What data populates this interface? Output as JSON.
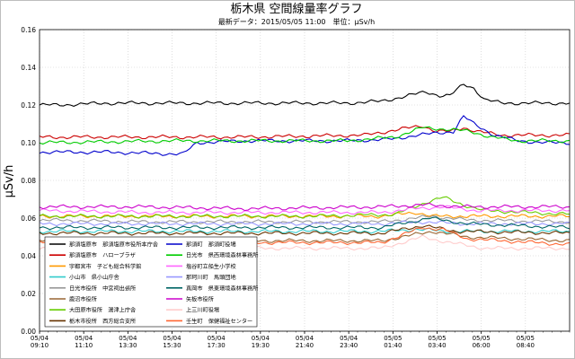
{
  "chart_data": {
    "type": "line",
    "title": "栃木県 空間線量率グラフ",
    "subtitle": "最新データ：2015/05/05 11:00　単位：μSv/h",
    "ylabel": "μSv/h",
    "xlabel": "",
    "ylim": [
      0,
      0.16
    ],
    "yticks": [
      "0.00",
      "0.02",
      "0.04",
      "0.06",
      "0.08",
      "0.10",
      "0.12",
      "0.14",
      "0.16"
    ],
    "x_tick_labels": [
      [
        "05/04",
        "09:10"
      ],
      [
        "05/04",
        "11:10"
      ],
      [
        "05/04",
        "13:30"
      ],
      [
        "05/04",
        "15:30"
      ],
      [
        "05/04",
        "17:30"
      ],
      [
        "05/04",
        "19:30"
      ],
      [
        "05/04",
        "21:40"
      ],
      [
        "05/04",
        "23:40"
      ],
      [
        "05/05",
        "01:40"
      ],
      [
        "05/05",
        "03:40"
      ],
      [
        "05/05",
        "06:00"
      ],
      [
        "05/05",
        "08:40"
      ]
    ],
    "grid": true,
    "legend_position": "lower-left",
    "x_steps": 155,
    "series": [
      {
        "name": "那須塩原市　那須塩原市役所本庁舎",
        "color": "#000000",
        "values": [
          [
            0,
            0.12
          ],
          [
            5,
            0.12
          ],
          [
            20,
            0.121
          ],
          [
            60,
            0.121
          ],
          [
            90,
            0.121
          ],
          [
            100,
            0.122
          ],
          [
            108,
            0.125
          ],
          [
            113,
            0.127
          ],
          [
            117,
            0.125
          ],
          [
            120,
            0.125
          ],
          [
            124,
            0.131
          ],
          [
            127,
            0.129
          ],
          [
            130,
            0.123
          ],
          [
            135,
            0.121
          ],
          [
            155,
            0.121
          ]
        ]
      },
      {
        "name": "那須塩原市　ハローブラザ",
        "color": "#cc0000",
        "values": [
          [
            0,
            0.103
          ],
          [
            60,
            0.103
          ],
          [
            95,
            0.104
          ],
          [
            105,
            0.107
          ],
          [
            112,
            0.109
          ],
          [
            116,
            0.106
          ],
          [
            120,
            0.106
          ],
          [
            124,
            0.108
          ],
          [
            128,
            0.106
          ],
          [
            135,
            0.104
          ],
          [
            155,
            0.104
          ]
        ]
      },
      {
        "name": "宇都宮市　子ども総合科学館",
        "color": "#ff9900",
        "values": [
          [
            0,
            0.061
          ],
          [
            30,
            0.061
          ],
          [
            60,
            0.061
          ],
          [
            100,
            0.061
          ],
          [
            110,
            0.063
          ],
          [
            115,
            0.061
          ],
          [
            155,
            0.061
          ]
        ]
      },
      {
        "name": "小山市　県小山庁舎",
        "color": "#33cccc",
        "values": [
          [
            0,
            0.053
          ],
          [
            50,
            0.053
          ],
          [
            100,
            0.053
          ],
          [
            110,
            0.054
          ],
          [
            120,
            0.053
          ],
          [
            155,
            0.053
          ]
        ]
      },
      {
        "name": "日光市役所　中宮祠出張所",
        "color": "#999999",
        "values": [
          [
            0,
            0.059
          ],
          [
            30,
            0.058
          ],
          [
            60,
            0.058
          ],
          [
            100,
            0.058
          ],
          [
            115,
            0.061
          ],
          [
            125,
            0.059
          ],
          [
            155,
            0.058
          ]
        ]
      },
      {
        "name": "鹿沼市役所",
        "color": "#996633",
        "values": [
          [
            0,
            0.048
          ],
          [
            50,
            0.048
          ],
          [
            100,
            0.048
          ],
          [
            115,
            0.053
          ],
          [
            125,
            0.05
          ],
          [
            155,
            0.048
          ]
        ]
      },
      {
        "name": "大田原市役所　湯津上庁舎",
        "color": "#66cc00",
        "values": [
          [
            0,
            0.061
          ],
          [
            40,
            0.061
          ],
          [
            80,
            0.061
          ],
          [
            104,
            0.062
          ],
          [
            114,
            0.069
          ],
          [
            118,
            0.071
          ],
          [
            124,
            0.067
          ],
          [
            130,
            0.064
          ],
          [
            155,
            0.062
          ]
        ]
      },
      {
        "name": "栃木市役所　西方総合支所",
        "color": "#663300",
        "values": [
          [
            0,
            0.052
          ],
          [
            50,
            0.052
          ],
          [
            100,
            0.052
          ],
          [
            112,
            0.056
          ],
          [
            122,
            0.053
          ],
          [
            155,
            0.052
          ]
        ]
      },
      {
        "name": "那須町　那須町役場",
        "color": "#0000cc",
        "values": [
          [
            0,
            0.095
          ],
          [
            20,
            0.095
          ],
          [
            40,
            0.094
          ],
          [
            42,
            0.094
          ],
          [
            46,
            0.1
          ],
          [
            60,
            0.101
          ],
          [
            90,
            0.101
          ],
          [
            104,
            0.102
          ],
          [
            110,
            0.104
          ],
          [
            116,
            0.105
          ],
          [
            121,
            0.106
          ],
          [
            124,
            0.114
          ],
          [
            127,
            0.11
          ],
          [
            133,
            0.104
          ],
          [
            140,
            0.101
          ],
          [
            148,
            0.1
          ],
          [
            155,
            0.1
          ]
        ]
      },
      {
        "name": "日光市　県西環境森林事務所",
        "color": "#00cc00",
        "values": [
          [
            0,
            0.1
          ],
          [
            40,
            0.101
          ],
          [
            60,
            0.101
          ],
          [
            90,
            0.101
          ],
          [
            104,
            0.103
          ],
          [
            112,
            0.108
          ],
          [
            120,
            0.107
          ],
          [
            126,
            0.106
          ],
          [
            132,
            0.103
          ],
          [
            140,
            0.101
          ],
          [
            155,
            0.101
          ]
        ]
      },
      {
        "name": "塩谷町立船生小学校",
        "color": "#ff66ff",
        "values": [
          [
            0,
            0.064
          ],
          [
            30,
            0.063
          ],
          [
            60,
            0.063
          ],
          [
            100,
            0.063
          ],
          [
            110,
            0.065
          ],
          [
            118,
            0.066
          ],
          [
            128,
            0.064
          ],
          [
            155,
            0.064
          ]
        ]
      },
      {
        "name": "那珂川町　馬頭団地",
        "color": "#9999ff",
        "values": [
          [
            0,
            0.057
          ],
          [
            50,
            0.057
          ],
          [
            100,
            0.057
          ],
          [
            112,
            0.058
          ],
          [
            125,
            0.057
          ],
          [
            155,
            0.057
          ]
        ]
      },
      {
        "name": "真岡市　県東環境森林事務所",
        "color": "#006666",
        "values": [
          [
            0,
            0.055
          ],
          [
            50,
            0.055
          ],
          [
            100,
            0.055
          ],
          [
            114,
            0.06
          ],
          [
            125,
            0.057
          ],
          [
            155,
            0.055
          ]
        ]
      },
      {
        "name": "矢板市役所",
        "color": "#cc00cc",
        "values": [
          [
            0,
            0.066
          ],
          [
            30,
            0.066
          ],
          [
            60,
            0.065
          ],
          [
            100,
            0.066
          ],
          [
            112,
            0.067
          ],
          [
            125,
            0.066
          ],
          [
            155,
            0.066
          ]
        ]
      },
      {
        "name": "上三川町役場",
        "color": "#ffcccc",
        "values": [
          [
            0,
            0.044
          ],
          [
            50,
            0.044
          ],
          [
            100,
            0.044
          ],
          [
            112,
            0.05
          ],
          [
            120,
            0.047
          ],
          [
            130,
            0.044
          ],
          [
            155,
            0.044
          ]
        ]
      },
      {
        "name": "壬生町　保健福祉センター",
        "color": "#ff6633",
        "values": [
          [
            0,
            0.047
          ],
          [
            50,
            0.047
          ],
          [
            100,
            0.047
          ],
          [
            112,
            0.055
          ],
          [
            118,
            0.054
          ],
          [
            125,
            0.049
          ],
          [
            155,
            0.046
          ]
        ]
      }
    ]
  }
}
